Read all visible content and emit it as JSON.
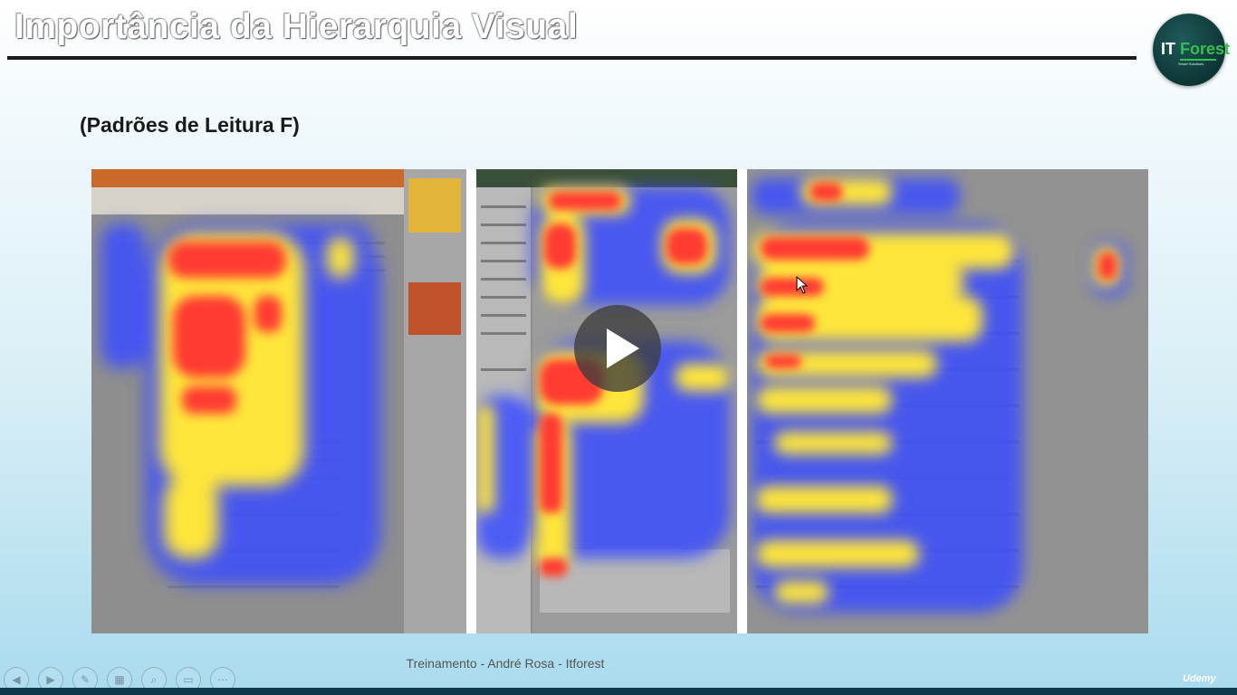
{
  "slide": {
    "title": "Importância da Hierarquia Visual",
    "subtitle": "(Padrões de Leitura F)"
  },
  "logo": {
    "text_it": "IT",
    "text_forest": "Forest",
    "tagline": "Smart Solutions"
  },
  "footer": {
    "credit": "Treinamento - André Rosa - Itforest",
    "brand": "Udemy"
  },
  "player": {
    "play_icon": "play-icon",
    "controls": [
      {
        "name": "previous-icon",
        "glyph": "◀"
      },
      {
        "name": "next-icon",
        "glyph": "▶"
      },
      {
        "name": "pen-icon",
        "glyph": "✎"
      },
      {
        "name": "slides-icon",
        "glyph": "▦"
      },
      {
        "name": "zoom-icon",
        "glyph": "⌕"
      },
      {
        "name": "screen-icon",
        "glyph": "▭"
      },
      {
        "name": "more-icon",
        "glyph": "⋯"
      }
    ]
  },
  "heatmap": {
    "image_semantics": "three eye-tracking heatmap screenshots showing F-shaped reading pattern",
    "colors": {
      "hot": "#ff3b30",
      "warm": "#ffe63b",
      "cool": "#3a4dff",
      "page": "#8e8e8e"
    }
  }
}
